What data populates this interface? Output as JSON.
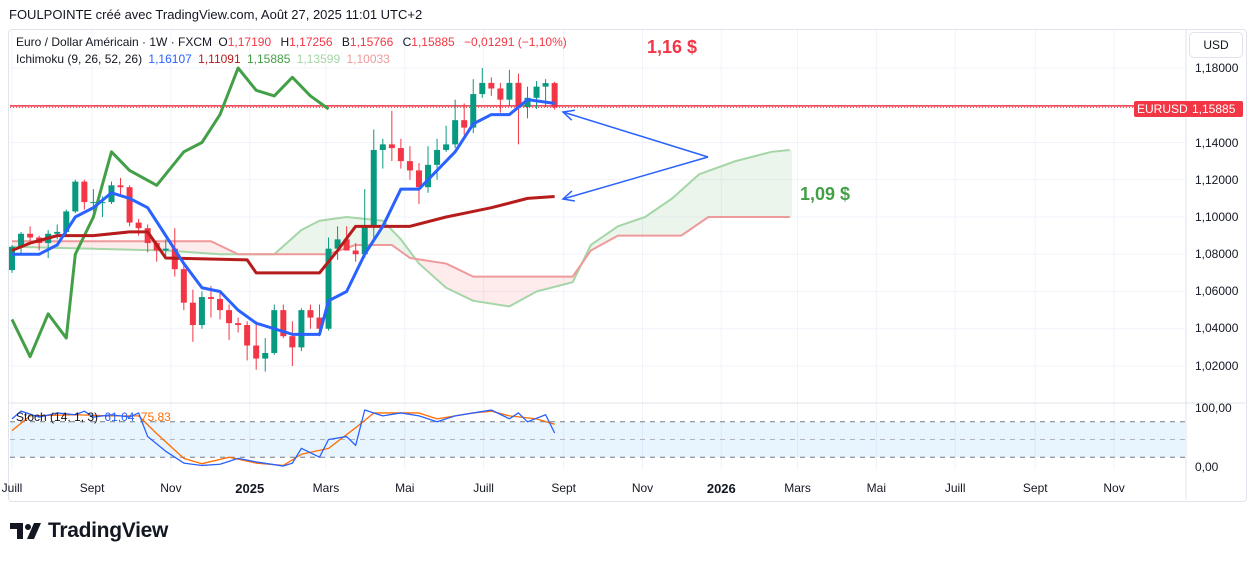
{
  "header": {
    "text": "FOULPOINTE créé avec TradingView.com, Août 27, 2025 11:01 UTC+2"
  },
  "legend": {
    "symbol": "Euro / Dollar Américain · 1W · FXCM",
    "o_label": "O",
    "o": "1,17190",
    "h_label": "H",
    "h": "1,17256",
    "b_label": "B",
    "b": "1,15766",
    "c_label": "C",
    "c": "1,15885",
    "change": "−0,01291 (−1,10%)",
    "ichimoku_label": "Ichimoku (9, 26, 52, 26)",
    "ichimoku_values": [
      "1,16107",
      "1,11091",
      "1,15885",
      "1,13599",
      "1,10033"
    ],
    "stoch_label": "Stoch (14, 1, 3)",
    "stoch_k": "61,04",
    "stoch_d": "75,83"
  },
  "price_scale": {
    "currency": "USD",
    "ticks": [
      "1,18000",
      "1,14000",
      "1,12000",
      "1,10000",
      "1,08000",
      "1,06000",
      "1,04000",
      "1,02000"
    ],
    "symbol_tag": "EURUSD",
    "last_price": "1,15885",
    "stoch_ticks": [
      "100,00",
      "0,00"
    ]
  },
  "time_axis": [
    {
      "label": "Juill",
      "date": "2024-07-01"
    },
    {
      "label": "Sept",
      "date": "2024-09-01"
    },
    {
      "label": "Nov",
      "date": "2024-11-01"
    },
    {
      "label": "2025",
      "date": "2025-01-01",
      "bold": true
    },
    {
      "label": "Mars",
      "date": "2025-03-01"
    },
    {
      "label": "Mai",
      "date": "2025-05-01"
    },
    {
      "label": "Juill",
      "date": "2025-07-01"
    },
    {
      "label": "Sept",
      "date": "2025-09-01"
    },
    {
      "label": "Nov",
      "date": "2025-11-01"
    },
    {
      "label": "2026",
      "date": "2026-01-01",
      "bold": true
    },
    {
      "label": "Mars",
      "date": "2026-03-01"
    },
    {
      "label": "Mai",
      "date": "2026-05-01"
    },
    {
      "label": "Juill",
      "date": "2026-07-01"
    },
    {
      "label": "Sept",
      "date": "2026-09-01"
    },
    {
      "label": "Nov",
      "date": "2026-11-01"
    }
  ],
  "annotations": {
    "upper": "1,16 $",
    "lower": "1,09 $"
  },
  "brand": "TradingView",
  "colors": {
    "up": "#089981",
    "down": "#f23645",
    "tenkan": "#2962ff",
    "kijun": "#b71c1c",
    "chikou": "#43a047",
    "span_a": "#a5d6a7",
    "span_b": "#ef9a9a",
    "stoch_k": "#2962ff",
    "stoch_d": "#ff6d00",
    "arrow": "#2962ff"
  },
  "chart_data": {
    "type": "candlestick",
    "ylim": [
      1.01,
      1.19
    ],
    "stoch_ylim": [
      0,
      100
    ],
    "stoch_bands": [
      80,
      50,
      20
    ],
    "last_price": 1.15885,
    "candles": [
      [
        "2024-07-01",
        1.0715,
        1.085,
        1.07,
        1.084
      ],
      [
        "2024-07-08",
        1.084,
        1.092,
        1.08,
        1.091
      ],
      [
        "2024-07-15",
        1.091,
        1.095,
        1.087,
        1.089
      ],
      [
        "2024-07-22",
        1.089,
        1.09,
        1.082,
        1.086
      ],
      [
        "2024-07-29",
        1.086,
        1.093,
        1.078,
        1.091
      ],
      [
        "2024-08-05",
        1.091,
        1.096,
        1.088,
        1.092
      ],
      [
        "2024-08-12",
        1.092,
        1.104,
        1.09,
        1.103
      ],
      [
        "2024-08-19",
        1.103,
        1.12,
        1.102,
        1.119
      ],
      [
        "2024-08-26",
        1.119,
        1.12,
        1.104,
        1.108
      ],
      [
        "2024-09-02",
        1.108,
        1.115,
        1.103,
        1.108
      ],
      [
        "2024-09-09",
        1.108,
        1.111,
        1.1,
        1.108
      ],
      [
        "2024-09-16",
        1.108,
        1.119,
        1.107,
        1.117
      ],
      [
        "2024-09-23",
        1.117,
        1.121,
        1.111,
        1.116
      ],
      [
        "2024-09-30",
        1.116,
        1.117,
        1.095,
        1.097
      ],
      [
        "2024-10-07",
        1.097,
        1.099,
        1.09,
        1.094
      ],
      [
        "2024-10-14",
        1.094,
        1.096,
        1.081,
        1.086
      ],
      [
        "2024-10-21",
        1.086,
        1.087,
        1.076,
        1.082
      ],
      [
        "2024-10-28",
        1.082,
        1.088,
        1.079,
        1.083
      ],
      [
        "2024-11-04",
        1.083,
        1.094,
        1.068,
        1.072
      ],
      [
        "2024-11-11",
        1.072,
        1.074,
        1.05,
        1.054
      ],
      [
        "2024-11-18",
        1.054,
        1.061,
        1.033,
        1.042
      ],
      [
        "2024-11-25",
        1.042,
        1.06,
        1.04,
        1.057
      ],
      [
        "2024-12-02",
        1.057,
        1.063,
        1.046,
        1.056
      ],
      [
        "2024-12-09",
        1.056,
        1.059,
        1.045,
        1.05
      ],
      [
        "2024-12-16",
        1.05,
        1.053,
        1.034,
        1.043
      ],
      [
        "2024-12-23",
        1.043,
        1.046,
        1.038,
        1.042
      ],
      [
        "2024-12-30",
        1.042,
        1.044,
        1.023,
        1.031
      ],
      [
        "2025-01-06",
        1.031,
        1.044,
        1.018,
        1.024
      ],
      [
        "2025-01-13",
        1.024,
        1.035,
        1.017,
        1.027
      ],
      [
        "2025-01-20",
        1.027,
        1.053,
        1.026,
        1.05
      ],
      [
        "2025-01-27",
        1.05,
        1.053,
        1.035,
        1.036
      ],
      [
        "2025-02-03",
        1.036,
        1.044,
        1.02,
        1.03
      ],
      [
        "2025-02-10",
        1.03,
        1.051,
        1.028,
        1.05
      ],
      [
        "2025-02-17",
        1.05,
        1.053,
        1.04,
        1.046
      ],
      [
        "2025-02-24",
        1.046,
        1.053,
        1.036,
        1.04
      ],
      [
        "2025-03-03",
        1.04,
        1.089,
        1.039,
        1.083
      ],
      [
        "2025-03-10",
        1.083,
        1.095,
        1.077,
        1.088
      ],
      [
        "2025-03-17",
        1.088,
        1.095,
        1.082,
        1.082
      ],
      [
        "2025-03-24",
        1.082,
        1.086,
        1.076,
        1.08
      ],
      [
        "2025-03-31",
        1.08,
        1.115,
        1.078,
        1.095
      ],
      [
        "2025-04-07",
        1.095,
        1.147,
        1.088,
        1.136
      ],
      [
        "2025-04-14",
        1.136,
        1.142,
        1.126,
        1.139
      ],
      [
        "2025-04-21",
        1.139,
        1.157,
        1.13,
        1.137
      ],
      [
        "2025-04-28",
        1.137,
        1.142,
        1.126,
        1.13
      ],
      [
        "2025-05-05",
        1.13,
        1.138,
        1.12,
        1.125
      ],
      [
        "2025-05-12",
        1.125,
        1.129,
        1.107,
        1.116
      ],
      [
        "2025-05-19",
        1.116,
        1.138,
        1.113,
        1.128
      ],
      [
        "2025-05-26",
        1.128,
        1.142,
        1.12,
        1.136
      ],
      [
        "2025-06-02",
        1.136,
        1.149,
        1.135,
        1.139
      ],
      [
        "2025-06-09",
        1.139,
        1.163,
        1.137,
        1.152
      ],
      [
        "2025-06-16",
        1.152,
        1.161,
        1.144,
        1.148
      ],
      [
        "2025-06-23",
        1.148,
        1.174,
        1.145,
        1.166
      ],
      [
        "2025-06-30",
        1.166,
        1.18,
        1.164,
        1.172
      ],
      [
        "2025-07-07",
        1.172,
        1.175,
        1.165,
        1.169
      ],
      [
        "2025-07-14",
        1.169,
        1.172,
        1.156,
        1.163
      ],
      [
        "2025-07-21",
        1.163,
        1.179,
        1.16,
        1.172
      ],
      [
        "2025-07-28",
        1.172,
        1.177,
        1.139,
        1.159
      ],
      [
        "2025-08-04",
        1.159,
        1.17,
        1.153,
        1.164
      ],
      [
        "2025-08-11",
        1.164,
        1.173,
        1.158,
        1.17
      ],
      [
        "2025-08-18",
        1.17,
        1.174,
        1.159,
        1.1719
      ],
      [
        "2025-08-25",
        1.1719,
        1.1726,
        1.1577,
        1.15885
      ]
    ],
    "tenkan": [
      [
        "2024-07-01",
        1.08
      ],
      [
        "2024-07-22",
        1.08
      ],
      [
        "2024-08-05",
        1.085
      ],
      [
        "2024-08-19",
        1.1
      ],
      [
        "2024-09-02",
        1.105
      ],
      [
        "2024-09-16",
        1.113
      ],
      [
        "2024-09-30",
        1.11
      ],
      [
        "2024-10-14",
        1.105
      ],
      [
        "2024-10-28",
        1.09
      ],
      [
        "2024-11-11",
        1.075
      ],
      [
        "2024-11-25",
        1.062
      ],
      [
        "2024-12-09",
        1.06
      ],
      [
        "2024-12-23",
        1.05
      ],
      [
        "2025-01-06",
        1.043
      ],
      [
        "2025-01-20",
        1.04
      ],
      [
        "2025-02-03",
        1.037
      ],
      [
        "2025-02-24",
        1.037
      ],
      [
        "2025-03-03",
        1.055
      ],
      [
        "2025-03-17",
        1.06
      ],
      [
        "2025-03-31",
        1.08
      ],
      [
        "2025-04-14",
        1.095
      ],
      [
        "2025-04-28",
        1.115
      ],
      [
        "2025-05-12",
        1.115
      ],
      [
        "2025-05-26",
        1.125
      ],
      [
        "2025-06-09",
        1.135
      ],
      [
        "2025-06-23",
        1.15
      ],
      [
        "2025-07-07",
        1.155
      ],
      [
        "2025-07-21",
        1.155
      ],
      [
        "2025-08-04",
        1.163
      ],
      [
        "2025-08-25",
        1.161
      ]
    ],
    "kijun": [
      [
        "2024-07-01",
        1.082
      ],
      [
        "2024-07-15",
        1.086
      ],
      [
        "2024-08-05",
        1.09
      ],
      [
        "2024-09-02",
        1.09
      ],
      [
        "2024-09-30",
        1.092
      ],
      [
        "2024-10-14",
        1.092
      ],
      [
        "2024-10-28",
        1.078
      ],
      [
        "2024-12-30",
        1.077
      ],
      [
        "2025-01-06",
        1.07
      ],
      [
        "2025-02-24",
        1.07
      ],
      [
        "2025-03-10",
        1.082
      ],
      [
        "2025-03-24",
        1.095
      ],
      [
        "2025-05-05",
        1.095
      ],
      [
        "2025-06-02",
        1.1
      ],
      [
        "2025-06-23",
        1.103
      ],
      [
        "2025-07-07",
        1.105
      ],
      [
        "2025-08-04",
        1.11
      ],
      [
        "2025-08-25",
        1.111
      ]
    ],
    "chikou": [
      [
        "2024-07-01",
        1.045
      ],
      [
        "2024-07-15",
        1.025
      ],
      [
        "2024-07-29",
        1.048
      ],
      [
        "2024-08-12",
        1.035
      ],
      [
        "2024-08-19",
        1.08
      ],
      [
        "2024-09-02",
        1.1
      ],
      [
        "2024-09-16",
        1.135
      ],
      [
        "2024-09-30",
        1.125
      ],
      [
        "2024-10-21",
        1.117
      ],
      [
        "2024-11-11",
        1.135
      ],
      [
        "2024-11-25",
        1.14
      ],
      [
        "2024-12-09",
        1.155
      ],
      [
        "2024-12-23",
        1.18
      ],
      [
        "2025-01-06",
        1.168
      ],
      [
        "2025-01-20",
        1.165
      ],
      [
        "2025-02-03",
        1.175
      ],
      [
        "2025-02-17",
        1.165
      ],
      [
        "2025-03-03",
        1.158
      ]
    ],
    "span_a": [
      [
        "2024-07-01",
        1.084
      ],
      [
        "2024-10-28",
        1.082
      ],
      [
        "2024-12-09",
        1.08
      ],
      [
        "2025-01-20",
        1.08
      ],
      [
        "2025-02-10",
        1.093
      ],
      [
        "2025-02-24",
        1.098
      ],
      [
        "2025-03-17",
        1.1
      ],
      [
        "2025-04-14",
        1.098
      ],
      [
        "2025-04-28",
        1.088
      ],
      [
        "2025-05-12",
        1.075
      ],
      [
        "2025-06-02",
        1.062
      ],
      [
        "2025-06-23",
        1.055
      ],
      [
        "2025-07-21",
        1.052
      ],
      [
        "2025-08-11",
        1.06
      ],
      [
        "2025-09-08",
        1.065
      ],
      [
        "2025-09-22",
        1.085
      ],
      [
        "2025-10-13",
        1.095
      ],
      [
        "2025-11-03",
        1.1
      ],
      [
        "2025-11-24",
        1.11
      ],
      [
        "2025-12-15",
        1.123
      ],
      [
        "2026-01-12",
        1.13
      ],
      [
        "2026-02-09",
        1.135
      ],
      [
        "2026-02-23",
        1.136
      ]
    ],
    "span_b": [
      [
        "2024-07-01",
        1.087
      ],
      [
        "2024-12-02",
        1.087
      ],
      [
        "2024-12-23",
        1.08
      ],
      [
        "2025-03-03",
        1.08
      ],
      [
        "2025-03-24",
        1.085
      ],
      [
        "2025-04-21",
        1.085
      ],
      [
        "2025-05-05",
        1.078
      ],
      [
        "2025-06-02",
        1.075
      ],
      [
        "2025-06-23",
        1.068
      ],
      [
        "2025-09-08",
        1.068
      ],
      [
        "2025-09-22",
        1.082
      ],
      [
        "2025-10-13",
        1.09
      ],
      [
        "2025-12-01",
        1.09
      ],
      [
        "2025-12-22",
        1.1
      ],
      [
        "2026-02-23",
        1.1
      ]
    ],
    "stoch_k": [
      [
        "2024-07-01",
        85
      ],
      [
        "2024-07-08",
        98
      ],
      [
        "2024-07-22",
        88
      ],
      [
        "2024-08-05",
        95
      ],
      [
        "2024-08-19",
        92
      ],
      [
        "2024-08-26",
        98
      ],
      [
        "2024-09-02",
        88
      ],
      [
        "2024-09-16",
        92
      ],
      [
        "2024-09-30",
        88
      ],
      [
        "2024-10-07",
        95
      ],
      [
        "2024-10-14",
        55
      ],
      [
        "2024-10-28",
        30
      ],
      [
        "2024-11-11",
        10
      ],
      [
        "2024-11-25",
        6
      ],
      [
        "2024-12-09",
        8
      ],
      [
        "2024-12-23",
        18
      ],
      [
        "2025-01-06",
        12
      ],
      [
        "2025-01-27",
        5
      ],
      [
        "2025-02-03",
        10
      ],
      [
        "2025-02-10",
        35
      ],
      [
        "2025-02-24",
        20
      ],
      [
        "2025-03-03",
        50
      ],
      [
        "2025-03-17",
        55
      ],
      [
        "2025-03-24",
        40
      ],
      [
        "2025-03-31",
        100
      ],
      [
        "2025-04-14",
        90
      ],
      [
        "2025-04-28",
        95
      ],
      [
        "2025-05-12",
        90
      ],
      [
        "2025-05-26",
        80
      ],
      [
        "2025-06-09",
        90
      ],
      [
        "2025-06-23",
        95
      ],
      [
        "2025-07-07",
        100
      ],
      [
        "2025-07-21",
        85
      ],
      [
        "2025-07-28",
        95
      ],
      [
        "2025-08-04",
        80
      ],
      [
        "2025-08-18",
        92
      ],
      [
        "2025-08-25",
        61.04
      ]
    ],
    "stoch_d": [
      [
        "2024-07-01",
        65
      ],
      [
        "2024-07-15",
        90
      ],
      [
        "2024-08-19",
        92
      ],
      [
        "2024-09-16",
        90
      ],
      [
        "2024-10-07",
        90
      ],
      [
        "2024-10-21",
        60
      ],
      [
        "2024-11-11",
        18
      ],
      [
        "2024-11-25",
        9
      ],
      [
        "2024-12-16",
        20
      ],
      [
        "2025-01-06",
        10
      ],
      [
        "2025-01-27",
        6
      ],
      [
        "2025-02-10",
        25
      ],
      [
        "2025-03-03",
        35
      ],
      [
        "2025-03-24",
        70
      ],
      [
        "2025-04-07",
        95
      ],
      [
        "2025-05-12",
        95
      ],
      [
        "2025-05-26",
        85
      ],
      [
        "2025-06-23",
        95
      ],
      [
        "2025-07-07",
        98
      ],
      [
        "2025-07-21",
        90
      ],
      [
        "2025-08-11",
        85
      ],
      [
        "2025-08-25",
        75.83
      ]
    ]
  }
}
